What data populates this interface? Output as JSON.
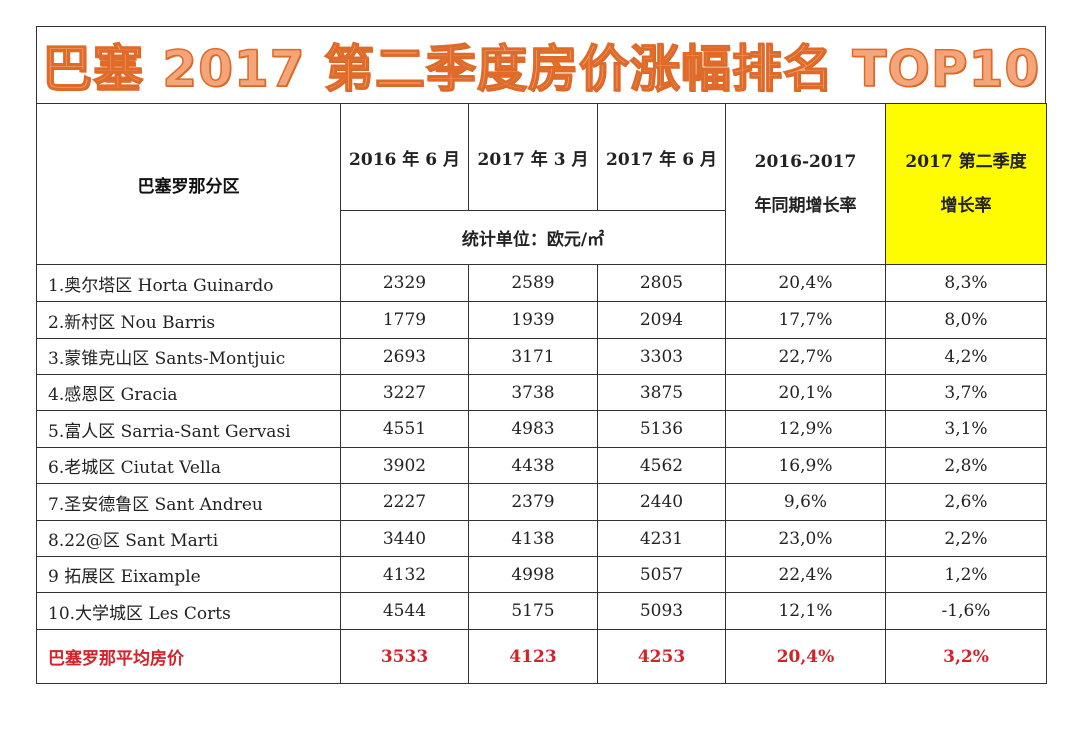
{
  "title": "巴塞 2017 第二季度房价涨幅排名 TOP10",
  "header": {
    "district": "巴塞罗那分区",
    "dates": [
      "2016 年 6 月",
      "2017 年 3 月",
      "2017 年 6 月"
    ],
    "unit": "统计单位：欧元/㎡",
    "yoy_line1": "2016-2017",
    "yoy_line2": "年同期增长率",
    "q2_line1": "2017  第二季度",
    "q2_line2": "增长率"
  },
  "rows": [
    {
      "name": "1.奥尔塔区  Horta Guinardo",
      "jun2016": "2329",
      "mar2017": "2589",
      "jun2017": "2805",
      "yoy": "20,4%",
      "q2": "8,3%"
    },
    {
      "name": "2.新村区  Nou Barris",
      "jun2016": "1779",
      "mar2017": "1939",
      "jun2017": "2094",
      "yoy": "17,7%",
      "q2": "8,0%"
    },
    {
      "name": "3.蒙锥克山区  Sants-Montjuic",
      "jun2016": "2693",
      "mar2017": "3171",
      "jun2017": "3303",
      "yoy": "22,7%",
      "q2": "4,2%"
    },
    {
      "name": "4.感恩区  Gracia",
      "jun2016": "3227",
      "mar2017": "3738",
      "jun2017": "3875",
      "yoy": "20,1%",
      "q2": "3,7%"
    },
    {
      "name": "5.富人区 Sarria-Sant Gervasi",
      "jun2016": "4551",
      "mar2017": "4983",
      "jun2017": "5136",
      "yoy": "12,9%",
      "q2": "3,1%"
    },
    {
      "name": "6.老城区  Ciutat Vella",
      "jun2016": "3902",
      "mar2017": "4438",
      "jun2017": "4562",
      "yoy": "16,9%",
      "q2": "2,8%"
    },
    {
      "name": "7.圣安德鲁区    Sant Andreu",
      "jun2016": "2227",
      "mar2017": "2379",
      "jun2017": "2440",
      "yoy": "9,6%",
      "q2": "2,6%"
    },
    {
      "name": "8.22@区  Sant Marti",
      "jun2016": "3440",
      "mar2017": "4138",
      "jun2017": "4231",
      "yoy": "23,0%",
      "q2": "2,2%"
    },
    {
      "name": "9 拓展区  Eixample",
      "jun2016": "4132",
      "mar2017": "4998",
      "jun2017": "5057",
      "yoy": "22,4%",
      "q2": "1,2%"
    },
    {
      "name": "10.大学城区 Les Corts",
      "jun2016": "4544",
      "mar2017": "5175",
      "jun2017": "5093",
      "yoy": "12,1%",
      "q2": "-1,6%"
    }
  ],
  "average": {
    "name": "巴塞罗那平均房价",
    "jun2016": "3533",
    "mar2017": "4123",
    "jun2017": "4253",
    "yoy": "20,4%",
    "q2": "3,2%"
  },
  "colors": {
    "title_fill": "#f4a67a",
    "title_stroke": "#e06a28",
    "q2_highlight": "#fffb00",
    "average_text": "#d2232a",
    "border": "#333333"
  }
}
